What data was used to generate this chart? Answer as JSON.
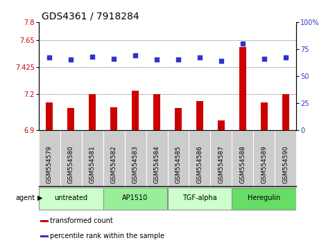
{
  "title": "GDS4361 / 7918284",
  "samples": [
    "GSM554579",
    "GSM554580",
    "GSM554581",
    "GSM554582",
    "GSM554583",
    "GSM554584",
    "GSM554585",
    "GSM554586",
    "GSM554587",
    "GSM554588",
    "GSM554589",
    "GSM554590"
  ],
  "bar_values": [
    7.13,
    7.08,
    7.2,
    7.09,
    7.23,
    7.2,
    7.08,
    7.14,
    6.98,
    7.59,
    7.13,
    7.2
  ],
  "percentile_values": [
    67,
    65,
    68,
    66,
    69,
    65,
    65,
    67,
    64,
    80,
    66,
    67
  ],
  "bar_color": "#cc0000",
  "dot_color": "#3333cc",
  "ylim_left": [
    6.9,
    7.8
  ],
  "ylim_right": [
    0,
    100
  ],
  "yticks_left": [
    6.9,
    7.2,
    7.425,
    7.65,
    7.8
  ],
  "ytick_labels_left": [
    "6.9",
    "7.2",
    "7.425",
    "7.65",
    "7.8"
  ],
  "yticks_right": [
    0,
    25,
    50,
    75,
    100
  ],
  "ytick_labels_right": [
    "0",
    "25",
    "50",
    "75",
    "100%"
  ],
  "dotted_ticks": [
    7.2,
    7.425,
    7.65
  ],
  "groups": [
    {
      "label": "untreated",
      "start": 0,
      "end": 3,
      "color": "#ccffcc"
    },
    {
      "label": "AP1510",
      "start": 3,
      "end": 6,
      "color": "#99ee99"
    },
    {
      "label": "TGF-alpha",
      "start": 6,
      "end": 9,
      "color": "#ccffcc"
    },
    {
      "label": "Heregulin",
      "start": 9,
      "end": 12,
      "color": "#66dd66"
    }
  ],
  "legend_items": [
    {
      "color": "#cc0000",
      "label": "transformed count"
    },
    {
      "color": "#3333cc",
      "label": "percentile rank within the sample"
    }
  ],
  "agent_label": "agent",
  "bg_color": "#ffffff",
  "plot_bg": "#ffffff",
  "sample_bg": "#cccccc",
  "bar_width": 0.35,
  "tick_label_color_left": "#cc0000",
  "tick_label_color_right": "#3333cc",
  "title_fontsize": 10,
  "label_fontsize": 7,
  "sample_fontsize": 6.5
}
